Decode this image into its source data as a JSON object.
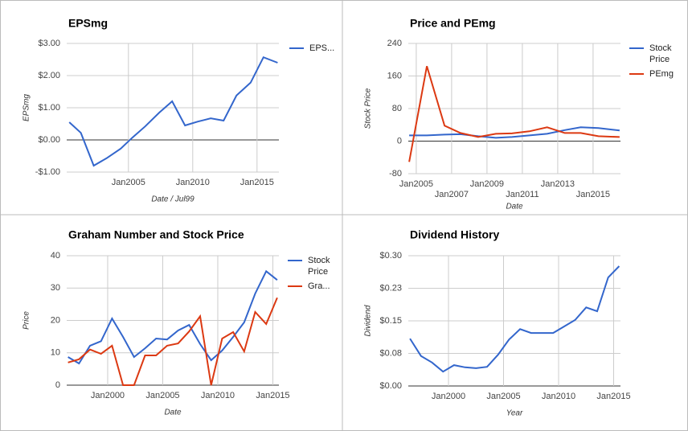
{
  "chart_data": [
    {
      "type": "line",
      "title": "EPSmg",
      "x_label": "Date / Jul99",
      "y_label": "EPSmg",
      "x": [
        2000.4,
        2001.3,
        2002.3,
        2003.3,
        2004.4,
        2005.3,
        2006.3,
        2007.4,
        2008.4,
        2009.4,
        2010.4,
        2011.4,
        2012.4,
        2013.4,
        2014.5,
        2015.5,
        2016.6
      ],
      "series": [
        {
          "name": "EPS...",
          "color": "#3366cc",
          "values": [
            0.55,
            0.22,
            -0.8,
            -0.57,
            -0.27,
            0.07,
            0.42,
            0.85,
            1.2,
            0.45,
            0.57,
            0.67,
            0.6,
            1.38,
            1.78,
            2.57,
            2.4
          ]
        }
      ],
      "xlim": [
        2000.2,
        2016.7
      ],
      "ylim": [
        -1,
        3
      ],
      "xticks": [
        {
          "value": 2005,
          "label": "Jan2005"
        },
        {
          "value": 2010,
          "label": "Jan2010"
        },
        {
          "value": 2015,
          "label": "Jan2015"
        }
      ],
      "yticks": [
        {
          "value": -1,
          "label": "-$1.00"
        },
        {
          "value": 0,
          "label": "$0.00"
        },
        {
          "value": 1,
          "label": "$1.00"
        },
        {
          "value": 2,
          "label": "$2.00"
        },
        {
          "value": 3,
          "label": "$3.00"
        }
      ],
      "grid": true,
      "legend": "right"
    },
    {
      "type": "line",
      "title": "Price and PEmg",
      "x_label": "Date",
      "y_label": "Stock Price",
      "x": [
        2004.6,
        2005.6,
        2006.6,
        2007.5,
        2008.5,
        2009.5,
        2010.4,
        2011.4,
        2012.4,
        2013.4,
        2014.3,
        2015.3,
        2016.5
      ],
      "series": [
        {
          "name": "Stock Price",
          "color": "#3366cc",
          "values": [
            14,
            14,
            16,
            17,
            12,
            8,
            10,
            14,
            18,
            27,
            34,
            32,
            26
          ]
        },
        {
          "name": "PEmg",
          "color": "#dc3912",
          "values": [
            -51,
            184,
            38,
            20,
            10,
            18,
            19,
            24,
            34,
            20,
            20,
            12,
            10
          ]
        }
      ],
      "xlim": [
        2004.55,
        2016.55
      ],
      "ylim": [
        -80,
        240
      ],
      "xticks": [
        {
          "value": 2005,
          "label": "Jan2005"
        },
        {
          "value": 2007,
          "label": "Jan2007"
        },
        {
          "value": 2009,
          "label": "Jan2009"
        },
        {
          "value": 2011,
          "label": "Jan2011"
        },
        {
          "value": 2013,
          "label": "Jan2013"
        },
        {
          "value": 2015,
          "label": "Jan2015"
        }
      ],
      "yticks": [
        -80,
        0,
        80,
        160,
        240
      ],
      "grid": true,
      "legend": "right"
    },
    {
      "type": "line",
      "title": "Graham Number and Stock Price",
      "x_label": "Date",
      "y_label": "Price",
      "x": [
        1996.4,
        1997.4,
        1998.4,
        1999.4,
        2000.4,
        2001.4,
        2002.4,
        2003.4,
        2004.4,
        2005.4,
        2006.4,
        2007.4,
        2008.4,
        2009.4,
        2010.4,
        2011.4,
        2012.4,
        2013.4,
        2014.4,
        2015.4
      ],
      "series": [
        {
          "name": "Stock Price",
          "color": "#3366cc",
          "values": [
            8.7,
            6.7,
            12.2,
            13.6,
            20.6,
            14.9,
            8.7,
            11.4,
            14.4,
            14.1,
            16.9,
            18.6,
            12.7,
            7.7,
            10.7,
            14.9,
            19.4,
            28.3,
            35.2,
            32.5
          ]
        },
        {
          "name": "Gra...",
          "color": "#dc3912",
          "values": [
            7,
            8,
            11,
            9.7,
            12.2,
            0,
            0,
            9.2,
            9.2,
            12.2,
            12.9,
            16.6,
            21.3,
            0,
            14.4,
            16.4,
            10.4,
            22.6,
            18.9,
            27
          ]
        }
      ],
      "xlim": [
        1996.28,
        2015.55
      ],
      "ylim": [
        0,
        40
      ],
      "xticks": [
        {
          "value": 2000,
          "label": "Jan2000"
        },
        {
          "value": 2005,
          "label": "Jan2005"
        },
        {
          "value": 2010,
          "label": "Jan2010"
        },
        {
          "value": 2015,
          "label": "Jan2015"
        }
      ],
      "yticks": [
        0,
        10,
        20,
        30,
        40
      ],
      "grid": true,
      "legend": "right"
    },
    {
      "type": "line",
      "title": "Dividend History",
      "x_label": "Year",
      "y_label": "Dividend",
      "x": [
        1996.5,
        1997.5,
        1998.5,
        1999.5,
        2000.5,
        2001.5,
        2002.5,
        2003.5,
        2004.5,
        2005.5,
        2006.5,
        2007.5,
        2008.5,
        2009.5,
        2010.5,
        2011.5,
        2012.5,
        2013.5,
        2014.5,
        2015.5
      ],
      "values": [
        0.109,
        0.069,
        0.054,
        0.033,
        0.048,
        0.043,
        0.041,
        0.044,
        0.072,
        0.107,
        0.131,
        0.122,
        0.122,
        0.122,
        0.137,
        0.152,
        0.181,
        0.172,
        0.25,
        0.276
      ],
      "color": "#3366cc",
      "xlim": [
        1996.35,
        2015.62
      ],
      "ylim": [
        0,
        0.3
      ],
      "xticks": [
        {
          "value": 2000,
          "label": "Jan2000"
        },
        {
          "value": 2005,
          "label": "Jan2005"
        },
        {
          "value": 2010,
          "label": "Jan2010"
        },
        {
          "value": 2015,
          "label": "Jan2015"
        }
      ],
      "yticks": [
        {
          "value": 0,
          "label": "$0.00"
        },
        {
          "value": 0.075,
          "label": "$0.08"
        },
        {
          "value": 0.15,
          "label": "$0.15"
        },
        {
          "value": 0.225,
          "label": "$0.23"
        },
        {
          "value": 0.3,
          "label": "$0.30"
        }
      ],
      "grid": true
    }
  ]
}
